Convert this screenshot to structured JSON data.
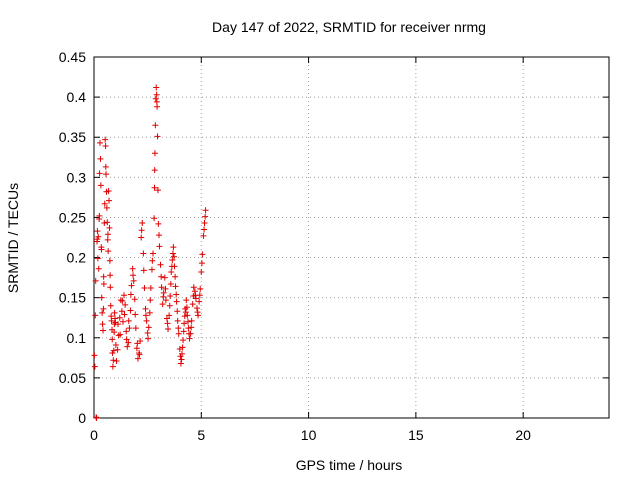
{
  "chart_data": {
    "type": "scatter",
    "title": "Day 147 of 2022, SRMTID for receiver nrmg",
    "xlabel": "GPS time / hours",
    "ylabel": "SRMTID / TECUs",
    "xlim": [
      0,
      24
    ],
    "ylim": [
      0,
      0.45
    ],
    "xticks": [
      0,
      5,
      10,
      15,
      20
    ],
    "xtick_labels": [
      "0",
      "5",
      "10",
      "15",
      "20"
    ],
    "yticks": [
      0,
      0.05,
      0.1,
      0.15,
      0.2,
      0.25,
      0.3,
      0.35,
      0.4,
      0.45
    ],
    "ytick_labels": [
      "0",
      "0.05",
      "0.1",
      "0.15",
      "0.2",
      "0.25",
      "0.3",
      "0.35",
      "0.4",
      "0.45"
    ],
    "grid": true,
    "marker": "+",
    "color": "#e00000",
    "series": [
      {
        "name": "SRMTID",
        "points": [
          [
            0.02,
            0.078
          ],
          [
            0.04,
            0.064
          ],
          [
            0.06,
            0.128
          ],
          [
            0.08,
            0.171
          ],
          [
            0.1,
            0.001
          ],
          [
            0.12,
            0.0
          ],
          [
            0.14,
            0.22
          ],
          [
            0.16,
            0.233
          ],
          [
            0.18,
            0.199
          ],
          [
            0.2,
            0.226
          ],
          [
            0.22,
            0.186
          ],
          [
            0.24,
            0.248
          ],
          [
            0.26,
            0.305
          ],
          [
            0.28,
            0.343
          ],
          [
            0.3,
            0.323
          ],
          [
            0.32,
            0.29
          ],
          [
            0.34,
            0.213
          ],
          [
            0.36,
            0.15
          ],
          [
            0.38,
            0.131
          ],
          [
            0.4,
            0.117
          ],
          [
            0.42,
            0.109
          ],
          [
            0.44,
            0.136
          ],
          [
            0.46,
            0.167
          ],
          [
            0.48,
            0.243
          ],
          [
            0.5,
            0.267
          ],
          [
            0.52,
            0.347
          ],
          [
            0.54,
            0.339
          ],
          [
            0.56,
            0.304
          ],
          [
            0.58,
            0.282
          ],
          [
            0.6,
            0.262
          ],
          [
            0.62,
            0.244
          ],
          [
            0.64,
            0.222
          ],
          [
            0.66,
            0.208
          ],
          [
            0.68,
            0.283
          ],
          [
            0.7,
            0.271
          ],
          [
            0.72,
            0.237
          ],
          [
            0.74,
            0.196
          ],
          [
            0.76,
            0.163
          ],
          [
            0.78,
            0.14
          ],
          [
            0.8,
            0.127
          ],
          [
            0.82,
            0.121
          ],
          [
            0.84,
            0.11
          ],
          [
            0.86,
            0.081
          ],
          [
            0.88,
            0.064
          ],
          [
            0.9,
            0.072
          ],
          [
            0.92,
            0.084
          ],
          [
            0.94,
            0.107
          ],
          [
            0.96,
            0.131
          ],
          [
            0.98,
            0.124
          ],
          [
            1.0,
            0.119
          ],
          [
            1.05,
            0.071
          ],
          [
            1.1,
            0.085
          ],
          [
            1.15,
            0.103
          ],
          [
            1.2,
            0.125
          ],
          [
            1.25,
            0.147
          ],
          [
            1.3,
            0.133
          ],
          [
            1.35,
            0.12
          ],
          [
            1.4,
            0.153
          ],
          [
            1.45,
            0.141
          ],
          [
            1.5,
            0.108
          ],
          [
            1.55,
            0.089
          ],
          [
            1.6,
            0.094
          ],
          [
            1.65,
            0.112
          ],
          [
            1.7,
            0.134
          ],
          [
            1.75,
            0.165
          ],
          [
            1.8,
            0.186
          ],
          [
            1.85,
            0.171
          ],
          [
            1.9,
            0.148
          ],
          [
            1.95,
            0.112
          ],
          [
            2.0,
            0.087
          ],
          [
            2.05,
            0.074
          ],
          [
            2.1,
            0.081
          ],
          [
            2.15,
            0.096
          ],
          [
            2.2,
            0.225
          ],
          [
            2.25,
            0.243
          ],
          [
            2.3,
            0.205
          ],
          [
            2.35,
            0.162
          ],
          [
            2.4,
            0.136
          ],
          [
            2.45,
            0.121
          ],
          [
            2.5,
            0.106
          ],
          [
            2.55,
            0.113
          ],
          [
            2.6,
            0.131
          ],
          [
            2.65,
            0.162
          ],
          [
            2.7,
            0.185
          ],
          [
            2.75,
            0.205
          ],
          [
            2.8,
            0.249
          ],
          [
            2.82,
            0.287
          ],
          [
            2.84,
            0.33
          ],
          [
            2.86,
            0.365
          ],
          [
            2.88,
            0.398
          ],
          [
            2.9,
            0.412
          ],
          [
            2.92,
            0.403
          ],
          [
            2.94,
            0.388
          ],
          [
            2.96,
            0.351
          ],
          [
            2.98,
            0.284
          ],
          [
            3.0,
            0.242
          ],
          [
            3.05,
            0.214
          ],
          [
            3.1,
            0.191
          ],
          [
            3.15,
            0.163
          ],
          [
            3.2,
            0.142
          ],
          [
            3.25,
            0.156
          ],
          [
            3.3,
            0.175
          ],
          [
            3.35,
            0.147
          ],
          [
            3.4,
            0.124
          ],
          [
            3.45,
            0.111
          ],
          [
            3.5,
            0.128
          ],
          [
            3.55,
            0.152
          ],
          [
            3.6,
            0.182
          ],
          [
            3.65,
            0.197
          ],
          [
            3.7,
            0.213
          ],
          [
            3.75,
            0.189
          ],
          [
            3.8,
            0.164
          ],
          [
            3.85,
            0.145
          ],
          [
            3.9,
            0.121
          ],
          [
            3.95,
            0.105
          ],
          [
            4.0,
            0.086
          ],
          [
            4.05,
            0.068
          ],
          [
            4.1,
            0.08
          ],
          [
            4.15,
            0.097
          ],
          [
            4.2,
            0.118
          ],
          [
            4.25,
            0.136
          ],
          [
            4.3,
            0.147
          ],
          [
            4.35,
            0.128
          ],
          [
            4.4,
            0.112
          ],
          [
            4.45,
            0.099
          ],
          [
            4.5,
            0.105
          ],
          [
            4.55,
            0.121
          ],
          [
            4.6,
            0.142
          ],
          [
            4.65,
            0.163
          ],
          [
            4.7,
            0.158
          ],
          [
            4.75,
            0.149
          ],
          [
            4.8,
            0.137
          ],
          [
            4.85,
            0.128
          ],
          [
            4.9,
            0.145
          ],
          [
            4.95,
            0.161
          ],
          [
            5.0,
            0.182
          ],
          [
            5.05,
            0.204
          ],
          [
            5.1,
            0.227
          ],
          [
            5.15,
            0.243
          ],
          [
            5.2,
            0.259
          ],
          [
            0.15,
            0.223
          ],
          [
            0.25,
            0.252
          ],
          [
            0.35,
            0.21
          ],
          [
            0.45,
            0.176
          ],
          [
            0.55,
            0.313
          ],
          [
            0.65,
            0.229
          ],
          [
            0.75,
            0.178
          ],
          [
            0.85,
            0.098
          ],
          [
            0.95,
            0.117
          ],
          [
            1.02,
            0.091
          ],
          [
            1.12,
            0.117
          ],
          [
            1.22,
            0.104
          ],
          [
            1.32,
            0.146
          ],
          [
            1.42,
            0.129
          ],
          [
            1.52,
            0.098
          ],
          [
            1.62,
            0.121
          ],
          [
            1.72,
            0.154
          ],
          [
            1.82,
            0.178
          ],
          [
            1.92,
            0.129
          ],
          [
            2.02,
            0.093
          ],
          [
            2.12,
            0.079
          ],
          [
            2.22,
            0.234
          ],
          [
            2.32,
            0.184
          ],
          [
            2.42,
            0.128
          ],
          [
            2.52,
            0.099
          ],
          [
            2.62,
            0.147
          ],
          [
            2.72,
            0.196
          ],
          [
            2.83,
            0.309
          ],
          [
            2.93,
            0.394
          ],
          [
            3.03,
            0.228
          ],
          [
            3.13,
            0.176
          ],
          [
            3.23,
            0.151
          ],
          [
            3.33,
            0.161
          ],
          [
            3.43,
            0.118
          ],
          [
            3.53,
            0.14
          ],
          [
            3.63,
            0.189
          ],
          [
            3.73,
            0.201
          ],
          [
            3.83,
            0.154
          ],
          [
            3.93,
            0.112
          ],
          [
            4.03,
            0.077
          ],
          [
            4.13,
            0.088
          ],
          [
            4.23,
            0.127
          ],
          [
            4.33,
            0.138
          ],
          [
            4.43,
            0.105
          ],
          [
            4.53,
            0.113
          ],
          [
            4.63,
            0.152
          ],
          [
            4.73,
            0.153
          ],
          [
            4.83,
            0.132
          ],
          [
            4.93,
            0.153
          ],
          [
            5.03,
            0.193
          ],
          [
            5.13,
            0.235
          ],
          [
            5.18,
            0.251
          ],
          [
            3.58,
            0.167
          ],
          [
            3.68,
            0.205
          ],
          [
            3.78,
            0.176
          ],
          [
            3.88,
            0.133
          ],
          [
            4.08,
            0.073
          ],
          [
            4.18,
            0.108
          ],
          [
            4.28,
            0.132
          ],
          [
            4.38,
            0.12
          ]
        ]
      }
    ]
  }
}
